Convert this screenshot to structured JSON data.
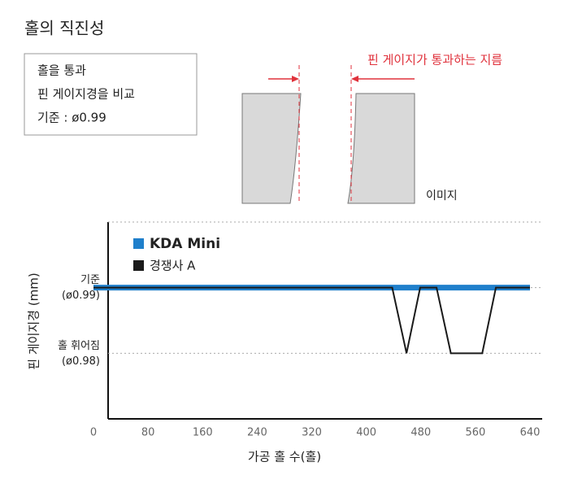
{
  "chart_data": {
    "type": "line",
    "title": "홀의 직진성",
    "note_lines": [
      "홀을 통과",
      "핀 게이지경을 비교",
      "기준 : ø0.99"
    ],
    "annotation": "핀 게이지가 통과하는 지름",
    "image_label": "이미지",
    "xlabel": "가공 홀 수(홀)",
    "ylabel": "핀 게이지경 (mm)",
    "xlim": [
      0,
      640
    ],
    "xticks": [
      0,
      80,
      160,
      240,
      320,
      400,
      480,
      560,
      640
    ],
    "ylim": [
      0.97,
      1.0
    ],
    "yticks": [
      {
        "value": 0.98,
        "label": [
          "홀 휘어짐",
          "(ø0.98)"
        ]
      },
      {
        "value": 0.99,
        "label": [
          "기준",
          "(ø0.99)"
        ]
      }
    ],
    "series": [
      {
        "name": "KDA Mini",
        "color": "#1f7fcb",
        "x": [
          0,
          640
        ],
        "values": [
          0.99,
          0.99
        ]
      },
      {
        "name": "경쟁사 A",
        "color": "#1a1a1a",
        "x": [
          0,
          438,
          459,
          479,
          503,
          524,
          570,
          590,
          640
        ],
        "values": [
          0.99,
          0.99,
          0.98,
          0.99,
          0.99,
          0.98,
          0.98,
          0.99,
          0.99
        ]
      }
    ]
  }
}
